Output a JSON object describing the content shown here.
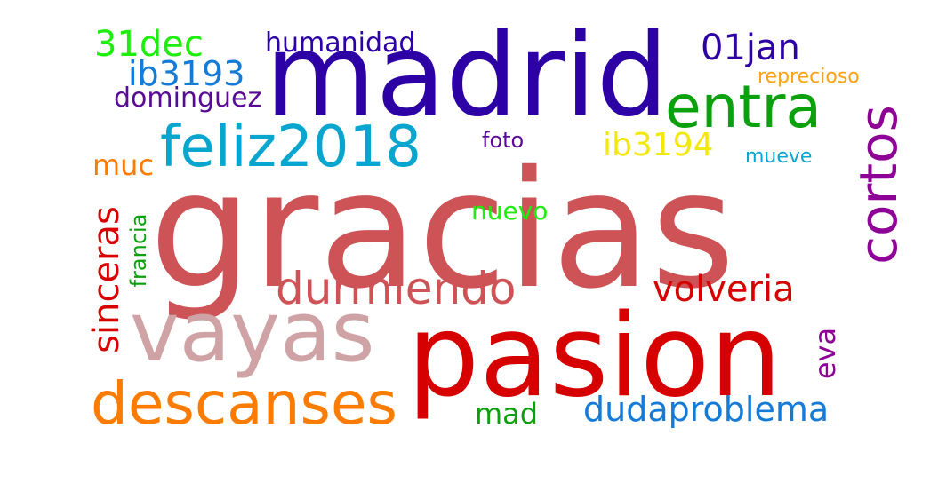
{
  "words": [
    {
      "text": "gracias",
      "color": "#cd5356"
    },
    {
      "text": "madrid",
      "color": "#2d00a6"
    },
    {
      "text": "pasion",
      "color": "#d60000"
    },
    {
      "text": "vayas",
      "color": "#cfa3a6"
    },
    {
      "text": "descanses",
      "color": "#fb7c00"
    },
    {
      "text": "feliz2018",
      "color": "#08a6cf"
    },
    {
      "text": "entra",
      "color": "#0aa10d"
    },
    {
      "text": "cortos",
      "color": "#8e0196"
    },
    {
      "text": "durmiendo",
      "color": "#cd5356"
    },
    {
      "text": "volveria",
      "color": "#d60000"
    },
    {
      "text": "dudaproblema",
      "color": "#157bd6"
    },
    {
      "text": "sinceras",
      "color": "#d60000"
    },
    {
      "text": "31dec",
      "color": "#1eee0b"
    },
    {
      "text": "01jan",
      "color": "#2d00a6"
    },
    {
      "text": "ib3193",
      "color": "#157bd6"
    },
    {
      "text": "ib3194",
      "color": "#f3e80b"
    },
    {
      "text": "humanidad",
      "color": "#2d00a6"
    },
    {
      "text": "dominguez",
      "color": "#5a0b96"
    },
    {
      "text": "muc",
      "color": "#fb7c00"
    },
    {
      "text": "mad",
      "color": "#0aa10d"
    },
    {
      "text": "eva",
      "color": "#8e0196"
    },
    {
      "text": "nuevo",
      "color": "#1eee0b"
    },
    {
      "text": "foto",
      "color": "#5a0b96"
    },
    {
      "text": "mueve",
      "color": "#08a6cf"
    },
    {
      "text": "reprecioso",
      "color": "#fba313"
    },
    {
      "text": "francia",
      "color": "#0aa10d"
    }
  ]
}
